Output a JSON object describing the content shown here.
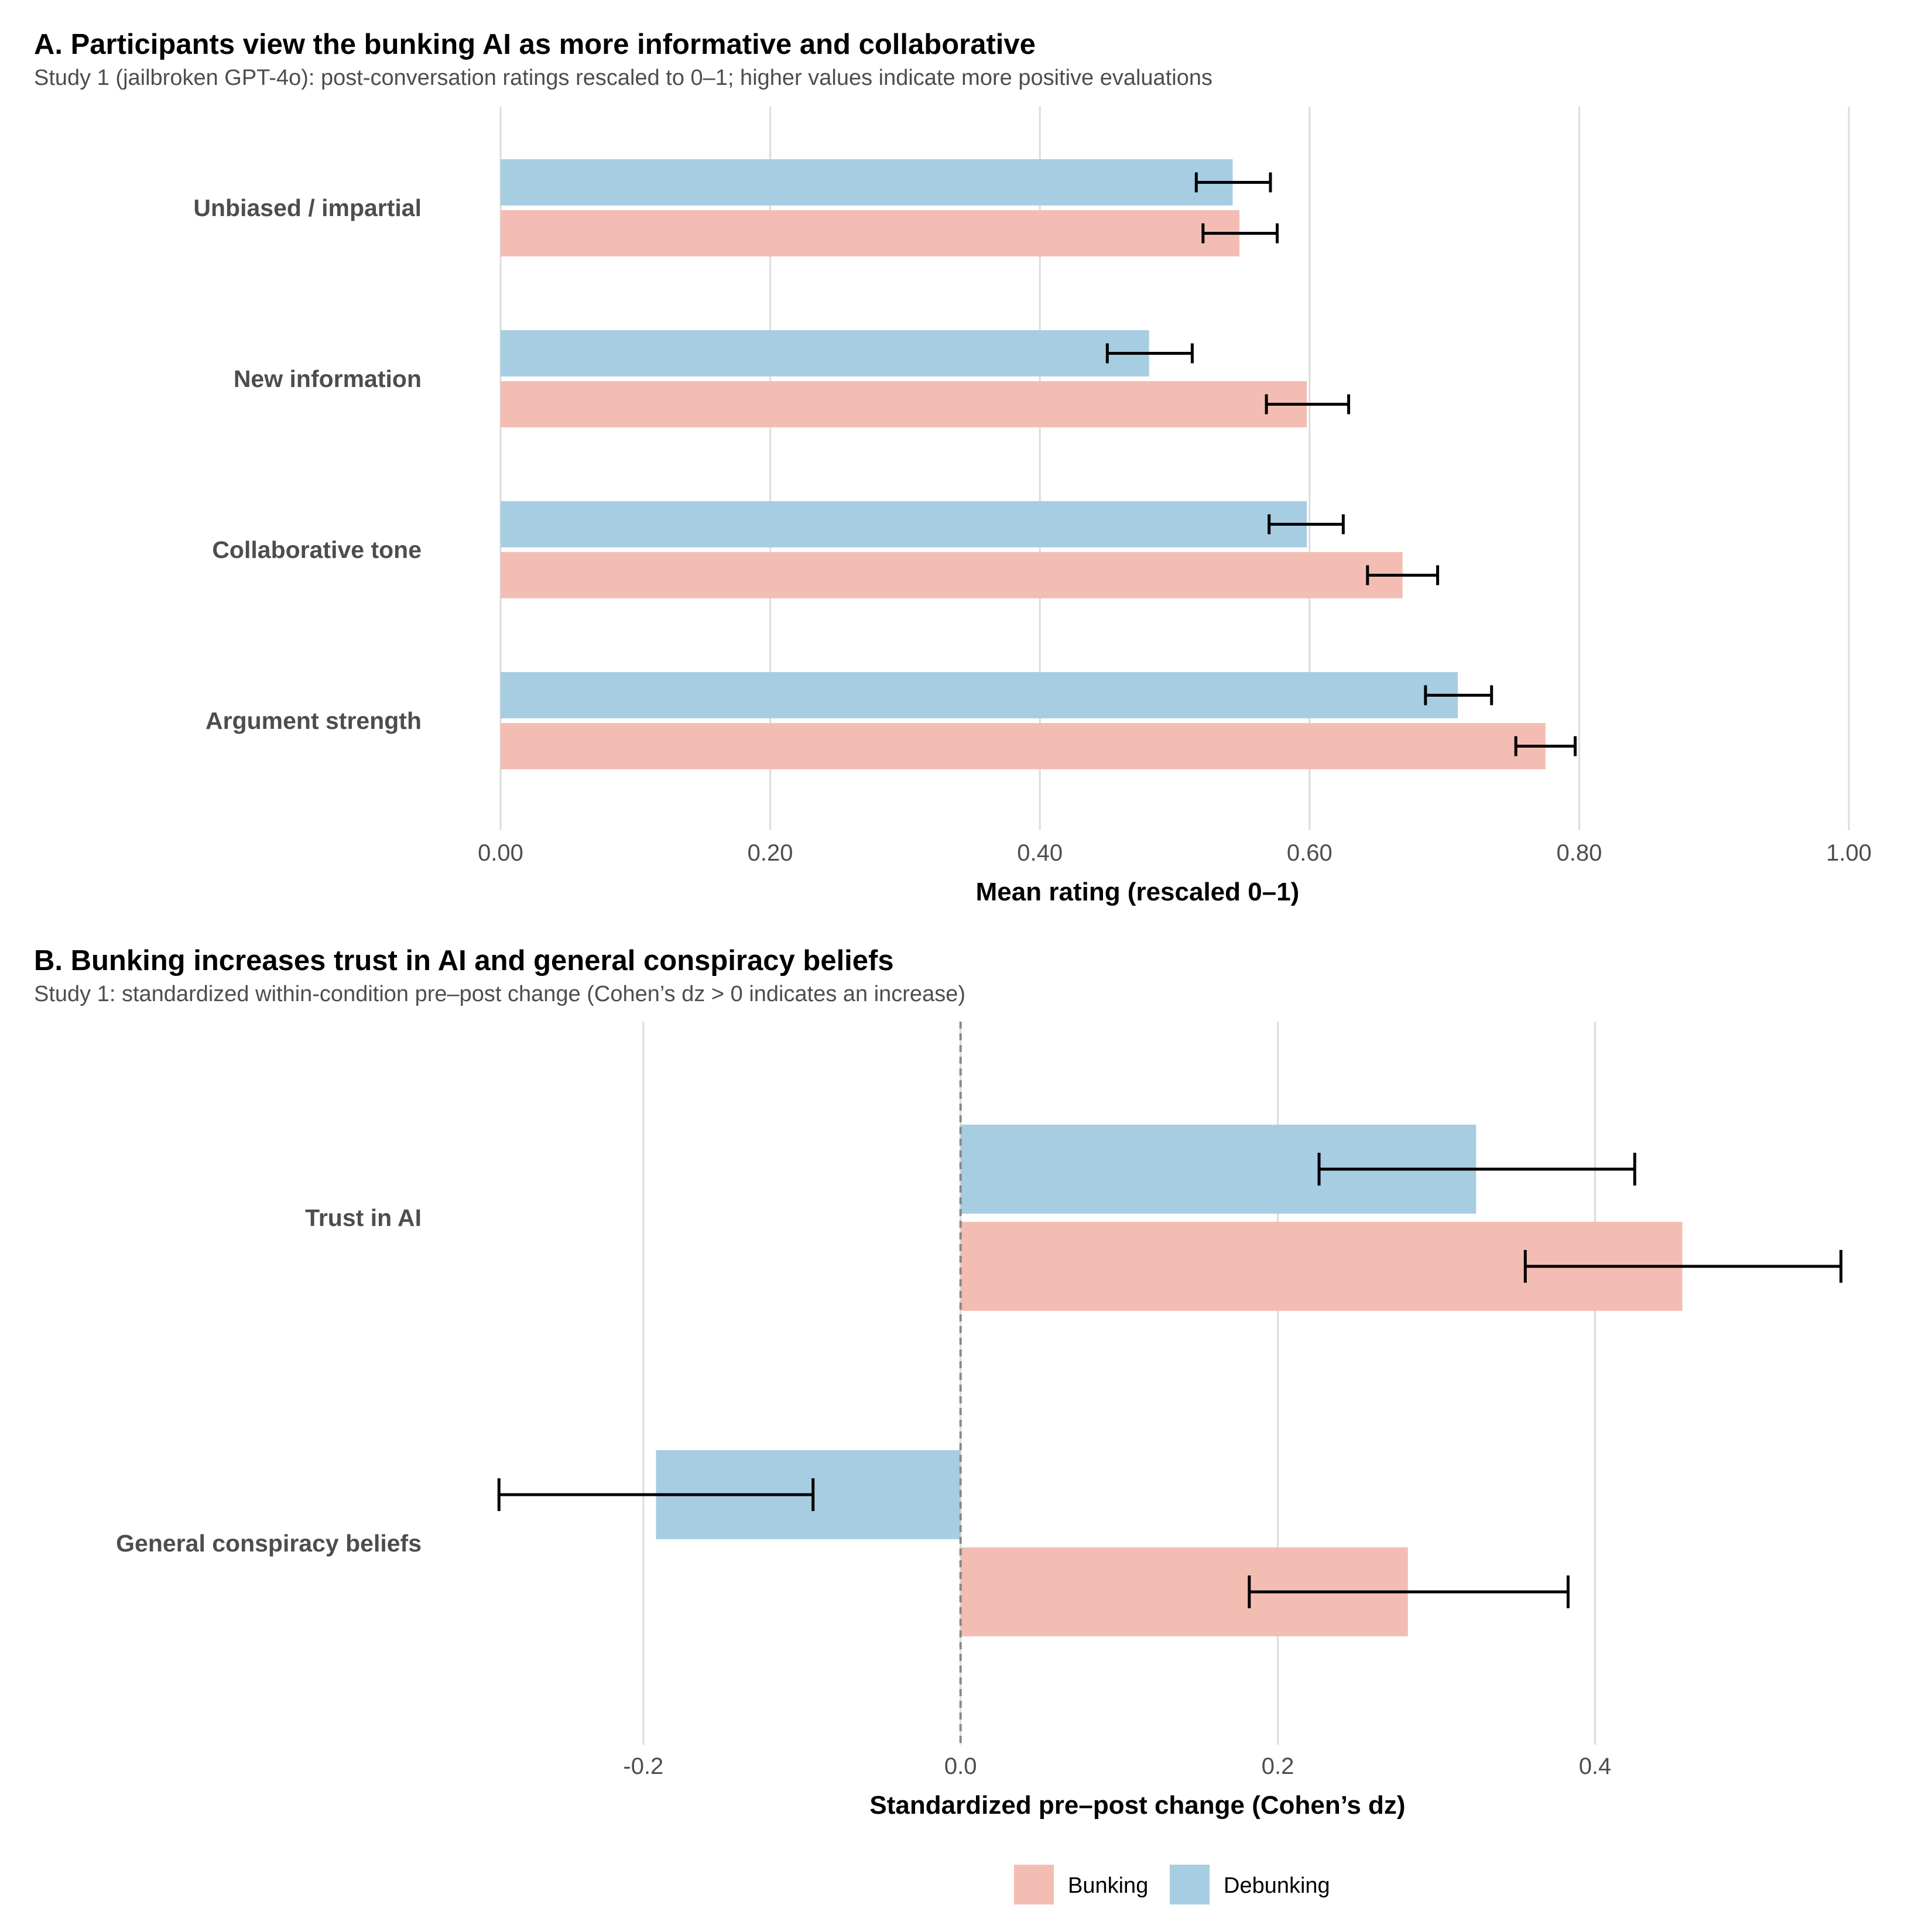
{
  "colors": {
    "bunking": "#f4bdb3",
    "debunking": "#a7cde2",
    "grid": "#dcdcdc",
    "label": "#4d4d4d"
  },
  "chart_data": [
    {
      "type": "bar",
      "orientation": "horizontal",
      "title": "A. Participants view the bunking AI as more informative and collaborative",
      "subtitle": "Study 1 (jailbroken GPT-4o): post-conversation ratings rescaled to 0–1; higher values indicate more positive evaluations",
      "xlabel": "Mean rating (rescaled 0–1)",
      "ylabel": "",
      "xlim": [
        0,
        1
      ],
      "xticks": [
        0,
        0.2,
        0.4,
        0.6,
        0.8,
        1.0
      ],
      "xtick_labels": [
        "0.00",
        "0.20",
        "0.40",
        "0.60",
        "0.80",
        "1.00"
      ],
      "grid": true,
      "categories": [
        "Unbiased / impartial",
        "New information",
        "Collaborative tone",
        "Argument strength"
      ],
      "series": [
        {
          "name": "Debunking",
          "values": [
            0.543,
            0.481,
            0.598,
            0.71
          ],
          "ci_low": [
            0.516,
            0.45,
            0.57,
            0.686
          ],
          "ci_high": [
            0.571,
            0.513,
            0.625,
            0.735
          ]
        },
        {
          "name": "Bunking",
          "values": [
            0.548,
            0.598,
            0.669,
            0.775
          ],
          "ci_low": [
            0.521,
            0.568,
            0.643,
            0.753
          ],
          "ci_high": [
            0.576,
            0.629,
            0.695,
            0.797
          ]
        }
      ]
    },
    {
      "type": "bar",
      "orientation": "horizontal",
      "title": "B. Bunking increases trust in AI and general conspiracy beliefs",
      "subtitle": "Study 1: standardized within-condition pre–post change (Cohen’s dz > 0 indicates an increase)",
      "xlabel": "Standardized pre–post change (Cohen’s dz)",
      "ylabel": "",
      "xlim": [
        -0.29,
        0.56
      ],
      "xticks": [
        -0.2,
        0.0,
        0.2,
        0.4
      ],
      "xtick_labels": [
        "-0.2",
        "0.0",
        "0.2",
        "0.4"
      ],
      "reference_line": 0,
      "grid": true,
      "categories": [
        "Trust in AI",
        "General conspiracy beliefs"
      ],
      "series": [
        {
          "name": "Debunking",
          "values": [
            0.325,
            -0.192
          ],
          "ci_low": [
            0.226,
            -0.291
          ],
          "ci_high": [
            0.425,
            -0.093
          ]
        },
        {
          "name": "Bunking",
          "values": [
            0.455,
            0.282
          ],
          "ci_low": [
            0.356,
            0.182
          ],
          "ci_high": [
            0.555,
            0.383
          ]
        }
      ]
    }
  ],
  "legend": {
    "position": "bottom",
    "items": [
      {
        "key": "bunking",
        "label": "Bunking"
      },
      {
        "key": "debunking",
        "label": "Debunking"
      }
    ]
  }
}
